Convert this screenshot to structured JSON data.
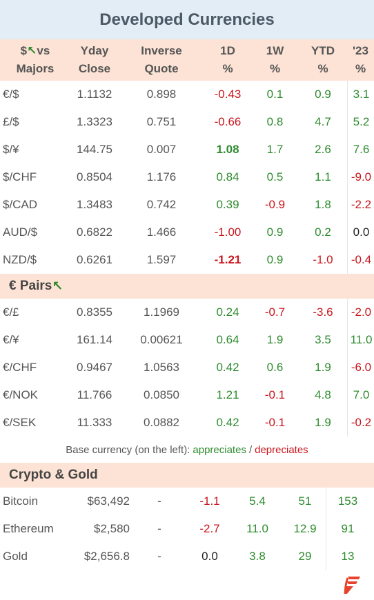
{
  "title": "Developed Currencies",
  "header": {
    "col0_line1": "$",
    "col0_line1b": "vs",
    "col0_line2": "Majors",
    "col1_line1": "Yday",
    "col1_line2": "Close",
    "col2_line1": "Inverse",
    "col2_line2": "Quote",
    "col3_line1": "1D",
    "col3_line2": "%",
    "col4_line1": "1W",
    "col4_line2": "%",
    "col5_line1": "YTD",
    "col5_line2": "%",
    "col6_line1": "'23",
    "col6_line2": "%"
  },
  "majors": [
    {
      "pair": "€/$",
      "close": "1.1132",
      "inverse": "0.898",
      "d1": "-0.43",
      "w1": "0.1",
      "ytd": "0.9",
      "y23": "3.1"
    },
    {
      "pair": "£/$",
      "close": "1.3323",
      "inverse": "0.751",
      "d1": "-0.66",
      "w1": "0.8",
      "ytd": "4.7",
      "y23": "5.2"
    },
    {
      "pair": "$/¥",
      "close": "144.75",
      "inverse": "0.007",
      "d1": "1.08",
      "w1": "1.7",
      "ytd": "2.6",
      "y23": "7.6"
    },
    {
      "pair": "$/CHF",
      "close": "0.8504",
      "inverse": "1.176",
      "d1": "0.84",
      "w1": "0.5",
      "ytd": "1.1",
      "y23": "-9.0"
    },
    {
      "pair": "$/CAD",
      "close": "1.3483",
      "inverse": "0.742",
      "d1": "0.39",
      "w1": "-0.9",
      "ytd": "1.8",
      "y23": "-2.2"
    },
    {
      "pair": "AUD/$",
      "close": "0.6822",
      "inverse": "1.466",
      "d1": "-1.00",
      "w1": "0.9",
      "ytd": "0.2",
      "y23": "0.0"
    },
    {
      "pair": "NZD/$",
      "close": "0.6261",
      "inverse": "1.597",
      "d1": "-1.21",
      "w1": "0.9",
      "ytd": "-1.0",
      "y23": "-0.4"
    }
  ],
  "euro_section": "€ Pairs",
  "euro": [
    {
      "pair": "€/£",
      "close": "0.8355",
      "inverse": "1.1969",
      "d1": "0.24",
      "w1": "-0.7",
      "ytd": "-3.6",
      "y23": "-2.0"
    },
    {
      "pair": "€/¥",
      "close": "161.14",
      "inverse": "0.00621",
      "d1": "0.64",
      "w1": "1.9",
      "ytd": "3.5",
      "y23": "11.0"
    },
    {
      "pair": "€/CHF",
      "close": "0.9467",
      "inverse": "1.0563",
      "d1": "0.42",
      "w1": "0.6",
      "ytd": "1.9",
      "y23": "-6.0"
    },
    {
      "pair": "€/NOK",
      "close": "11.766",
      "inverse": "0.0850",
      "d1": "1.21",
      "w1": "-0.1",
      "ytd": "4.8",
      "y23": "7.0"
    },
    {
      "pair": "€/SEK",
      "close": "11.333",
      "inverse": "0.0882",
      "d1": "0.42",
      "w1": "-0.1",
      "ytd": "1.9",
      "y23": "-0.2"
    }
  ],
  "legend": {
    "prefix": "Base currency (on the left):",
    "up": "appreciates",
    "sep": "/",
    "down": "depreciates"
  },
  "crypto_section": "Crypto & Gold",
  "crypto": [
    {
      "name": "Bitcoin",
      "price": "$63,492",
      "inverse": "-",
      "d1": "-1.1",
      "w1": "5.4",
      "ytd": "51",
      "y23": "153"
    },
    {
      "name": "Ethereum",
      "price": "$2,580",
      "inverse": "-",
      "d1": "-2.7",
      "w1": "11.0",
      "ytd": "12.9",
      "y23": "91"
    },
    {
      "name": "Gold",
      "price": "$2,656.8",
      "inverse": "-",
      "d1": "0.0",
      "w1": "3.8",
      "ytd": "29",
      "y23": "13"
    }
  ],
  "colors": {
    "up": "#2e8b2e",
    "down": "#c8161d",
    "header_bg": "#fce3d5",
    "title_bg": "#e3edf5",
    "logo": "#e8432f"
  },
  "icons": {
    "header_arrow": "arrow-up-left-icon",
    "logo": "brand-logo-icon"
  }
}
